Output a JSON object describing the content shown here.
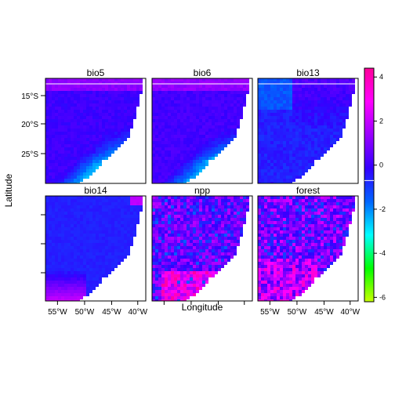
{
  "chart_data": {
    "type": "heatmap",
    "title": "",
    "xlabel": "Longitude",
    "ylabel": "Latitude",
    "x_ticks": [
      "55°W",
      "50°W",
      "45°W",
      "40°W"
    ],
    "y_ticks": [
      "15°S",
      "20°S",
      "25°S"
    ],
    "panels": [
      {
        "name": "bio5",
        "row": 0,
        "col": 0,
        "mean": -0.6,
        "tone": "warm-coast"
      },
      {
        "name": "bio6",
        "row": 0,
        "col": 1,
        "mean": -0.5,
        "tone": "warm-coast"
      },
      {
        "name": "bio13",
        "row": 0,
        "col": 2,
        "mean": -0.3,
        "tone": "wet-north"
      },
      {
        "name": "bio14",
        "row": 1,
        "col": 0,
        "mean": -0.2,
        "tone": "dry-south"
      },
      {
        "name": "npp",
        "row": 1,
        "col": 1,
        "mean": 0.4,
        "tone": "noisy"
      },
      {
        "name": "forest",
        "row": 1,
        "col": 2,
        "mean": 0.6,
        "tone": "noisy-cyan"
      }
    ],
    "colorbar": {
      "ticks": [
        4,
        2,
        0,
        -2,
        -4,
        -6
      ],
      "range": [
        -6.2,
        4.4
      ],
      "colors": [
        "#c8ff00",
        "#00ff00",
        "#00ffff",
        "#0066ff",
        "#3300ff",
        "#9900ff",
        "#ff00ff",
        "#ff0099"
      ]
    }
  }
}
